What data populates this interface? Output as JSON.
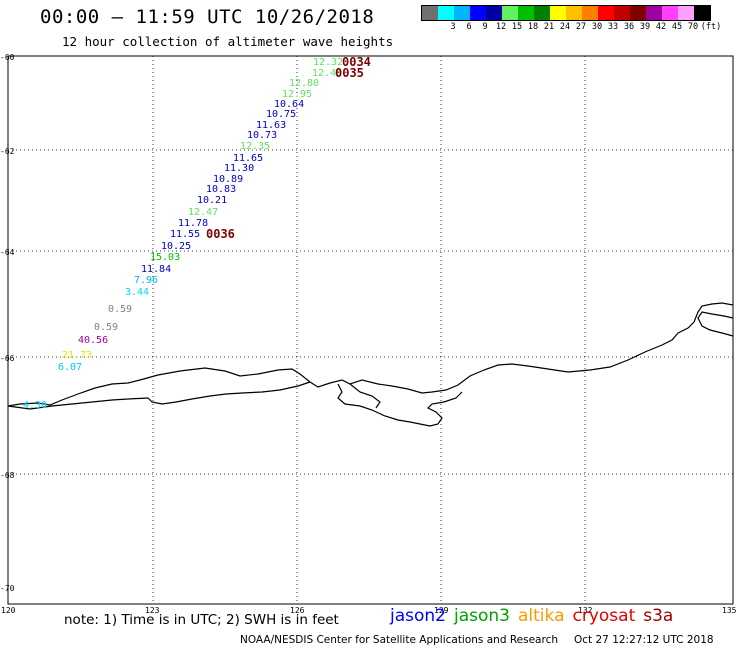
{
  "title": "00:00 – 11:59 UTC 10/26/2018",
  "subtitle": "12 hour collection of altimeter wave heights",
  "legend": {
    "swatches": [
      {
        "color": "#707070",
        "label": ""
      },
      {
        "color": "#00ffff",
        "label": "3"
      },
      {
        "color": "#00b4ff",
        "label": "6"
      },
      {
        "color": "#0000ff",
        "label": "9"
      },
      {
        "color": "#0000a0",
        "label": "12"
      },
      {
        "color": "#60f060",
        "label": "15"
      },
      {
        "color": "#00c000",
        "label": "18"
      },
      {
        "color": "#008000",
        "label": "21"
      },
      {
        "color": "#ffff00",
        "label": "24"
      },
      {
        "color": "#ffc000",
        "label": "27"
      },
      {
        "color": "#ff8000",
        "label": "30"
      },
      {
        "color": "#ff0000",
        "label": "33"
      },
      {
        "color": "#c00000",
        "label": "36"
      },
      {
        "color": "#800000",
        "label": "39"
      },
      {
        "color": "#a000a0",
        "label": "42"
      },
      {
        "color": "#ff40ff",
        "label": "45"
      },
      {
        "color": "#ffa0ff",
        "label": "70"
      },
      {
        "color": "#000000",
        "label": ""
      }
    ],
    "unit": "(ft)"
  },
  "axes": {
    "lat_labels": [
      "-60",
      "-62",
      "-64",
      "-66",
      "-68",
      "-70"
    ],
    "lon_labels": [
      "120",
      "123",
      "126",
      "129",
      "132",
      "135"
    ]
  },
  "observations": [
    {
      "text": "12.32",
      "color": "#60e060"
    },
    {
      "text": "12.46",
      "color": "#60e060"
    },
    {
      "text": "12.80",
      "color": "#60e060"
    },
    {
      "text": "12.95",
      "color": "#60e060"
    },
    {
      "text": "10.64",
      "color": "#0000c0"
    },
    {
      "text": "10.75",
      "color": "#0000c0"
    },
    {
      "text": "11.63",
      "color": "#0000c0"
    },
    {
      "text": "10.73",
      "color": "#0000c0"
    },
    {
      "text": "12.35",
      "color": "#60e060"
    },
    {
      "text": "11.65",
      "color": "#0000c0"
    },
    {
      "text": "11.30",
      "color": "#0000c0"
    },
    {
      "text": "10.89",
      "color": "#0000c0"
    },
    {
      "text": "10.83",
      "color": "#0000c0"
    },
    {
      "text": "10.21",
      "color": "#0000c0"
    },
    {
      "text": "12.47",
      "color": "#60e060"
    },
    {
      "text": "11.78",
      "color": "#0000c0"
    },
    {
      "text": "11.55",
      "color": "#0000c0"
    },
    {
      "text": "10.25",
      "color": "#0000c0"
    },
    {
      "text": "15.03",
      "color": "#00c000"
    },
    {
      "text": "11.84",
      "color": "#0000c0"
    },
    {
      "text": "7.96",
      "color": "#00b4ff"
    },
    {
      "text": "3.44",
      "color": "#00d8ff"
    },
    {
      "text": "0.59",
      "color": "#808080"
    },
    {
      "text": "0.59",
      "color": "#808080"
    },
    {
      "text": "40.56",
      "color": "#a000a0"
    },
    {
      "text": "21.73",
      "color": "#e8e800"
    },
    {
      "text": "6.07",
      "color": "#00c8ff"
    },
    {
      "text": "4.30",
      "color": "#00d8ff"
    }
  ],
  "time_labels": [
    {
      "text": "0034",
      "color": "#800000"
    },
    {
      "text": "0035",
      "color": "#800000"
    },
    {
      "text": "0036",
      "color": "#800000"
    }
  ],
  "note": "note: 1) Time is in UTC; 2) SWH is in feet",
  "satellites": [
    {
      "name": "jason2",
      "color": "#0000ff"
    },
    {
      "name": "jason3",
      "color": "#00a000"
    },
    {
      "name": "altika",
      "color": "#ff9900"
    },
    {
      "name": "cryosat",
      "color": "#e00000"
    },
    {
      "name": "s3a",
      "color": "#a00000"
    }
  ],
  "credit": "NOAA/NESDIS Center for Satellite Applications and Research",
  "timestamp": "Oct 27 12:27:12 UTC 2018"
}
